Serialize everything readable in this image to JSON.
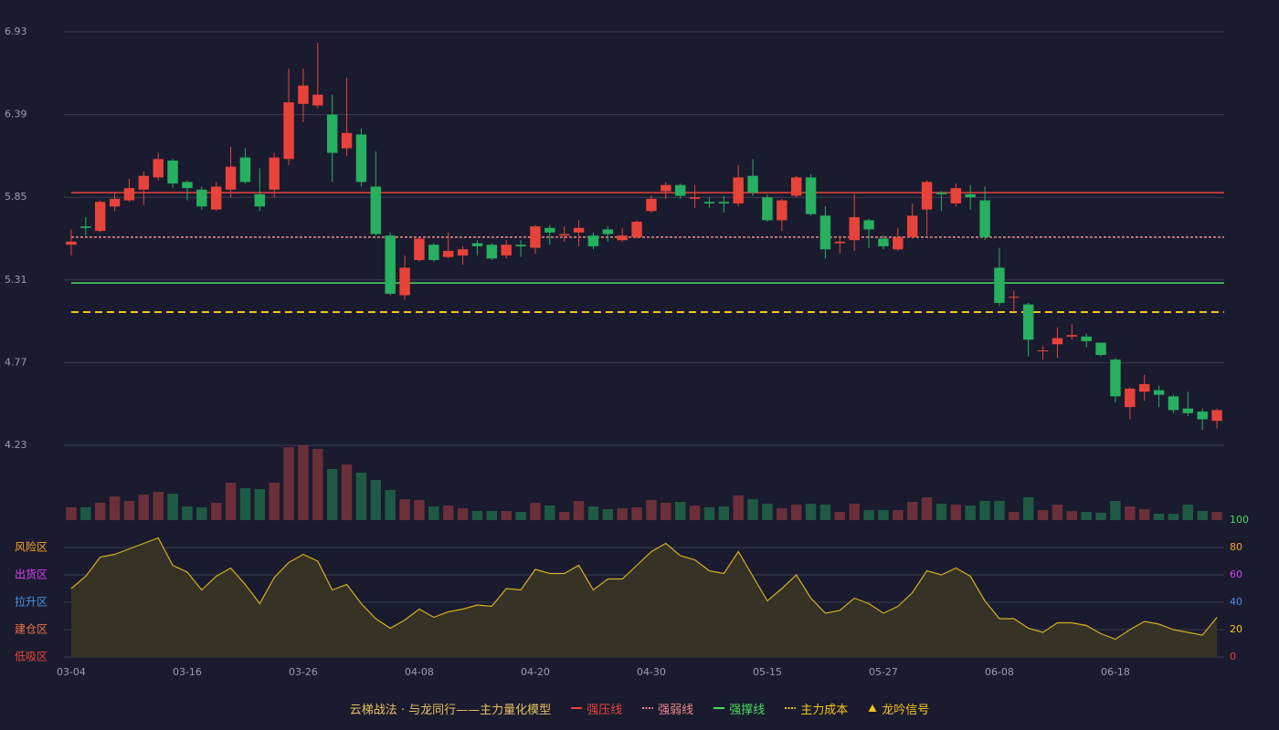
{
  "chart_data": [
    {
      "type": "candlestick",
      "title": "云梯战法 · 与龙同行——主力量化模型",
      "categories": [
        "03-04",
        null,
        null,
        null,
        null,
        null,
        null,
        null,
        "03-16",
        null,
        null,
        null,
        null,
        null,
        null,
        null,
        "03-26",
        null,
        null,
        null,
        null,
        null,
        null,
        null,
        "04-08",
        null,
        null,
        null,
        null,
        null,
        null,
        null,
        "04-20",
        null,
        null,
        null,
        null,
        null,
        null,
        null,
        "04-30",
        null,
        null,
        null,
        null,
        null,
        null,
        null,
        "05-15",
        null,
        null,
        null,
        null,
        null,
        null,
        null,
        "05-27",
        null,
        null,
        null,
        null,
        null,
        null,
        null,
        "06-08",
        null,
        null,
        null,
        null,
        null,
        null,
        null,
        "06-18",
        null,
        null,
        null,
        null,
        null,
        null,
        null
      ],
      "open": [
        5.54,
        5.66,
        5.63,
        5.79,
        5.83,
        5.9,
        5.98,
        6.09,
        5.95,
        5.9,
        5.77,
        5.9,
        6.11,
        5.87,
        5.9,
        6.1,
        6.46,
        6.45,
        6.39,
        6.17,
        6.26,
        5.92,
        5.6,
        5.21,
        5.44,
        5.54,
        5.46,
        5.47,
        5.55,
        5.54,
        5.47,
        5.54,
        5.52,
        5.65,
        5.6,
        5.62,
        5.6,
        5.64,
        5.57,
        5.59,
        5.76,
        5.89,
        5.93,
        5.84,
        5.82,
        5.82,
        5.81,
        5.99,
        5.85,
        5.7,
        5.86,
        5.98,
        5.73,
        5.55,
        5.57,
        5.7,
        5.58,
        5.51,
        5.59,
        5.77,
        5.88,
        5.81,
        5.87,
        5.83,
        5.39,
        5.2,
        5.15,
        4.85,
        4.89,
        4.94,
        4.94,
        4.9,
        4.79,
        4.48,
        4.58,
        4.59,
        4.55,
        4.47,
        4.45,
        4.39
      ],
      "high": [
        5.64,
        5.72,
        5.83,
        5.88,
        5.97,
        6.02,
        6.14,
        6.1,
        5.96,
        5.92,
        5.95,
        6.18,
        6.17,
        6.04,
        6.14,
        6.69,
        6.69,
        6.86,
        6.52,
        6.63,
        6.3,
        6.15,
        5.62,
        5.47,
        5.59,
        5.55,
        5.62,
        5.53,
        5.57,
        5.55,
        5.57,
        5.57,
        5.67,
        5.67,
        5.66,
        5.7,
        5.62,
        5.66,
        5.65,
        5.7,
        5.86,
        5.95,
        5.94,
        5.93,
        5.85,
        5.86,
        6.06,
        6.1,
        5.87,
        5.84,
        5.99,
        6.0,
        5.79,
        5.6,
        5.87,
        5.71,
        5.6,
        5.65,
        5.81,
        5.96,
        5.89,
        5.94,
        5.93,
        5.92,
        5.52,
        5.24,
        5.16,
        4.88,
        5.0,
        5.02,
        4.96,
        4.9,
        4.8,
        4.61,
        4.69,
        4.62,
        4.56,
        4.58,
        4.47,
        4.47
      ],
      "low": [
        5.47,
        5.6,
        5.62,
        5.76,
        5.82,
        5.8,
        5.96,
        5.91,
        5.83,
        5.77,
        5.76,
        5.85,
        5.94,
        5.76,
        5.85,
        6.06,
        6.34,
        6.43,
        5.95,
        6.12,
        5.92,
        5.6,
        5.21,
        5.18,
        5.43,
        5.43,
        5.45,
        5.41,
        5.47,
        5.44,
        5.45,
        5.46,
        5.48,
        5.54,
        5.56,
        5.53,
        5.51,
        5.56,
        5.56,
        5.58,
        5.75,
        5.84,
        5.84,
        5.78,
        5.78,
        5.75,
        5.79,
        5.86,
        5.69,
        5.63,
        5.85,
        5.73,
        5.45,
        5.48,
        5.5,
        5.52,
        5.51,
        5.5,
        5.58,
        5.6,
        5.76,
        5.79,
        5.77,
        5.57,
        5.14,
        5.1,
        4.81,
        4.79,
        4.8,
        4.92,
        4.87,
        4.81,
        4.51,
        4.4,
        4.52,
        4.48,
        4.44,
        4.42,
        4.33,
        4.34
      ],
      "close": [
        5.56,
        5.65,
        5.82,
        5.84,
        5.91,
        5.99,
        6.1,
        5.94,
        5.91,
        5.79,
        5.92,
        6.05,
        5.95,
        5.79,
        6.11,
        6.47,
        6.58,
        6.52,
        6.14,
        6.27,
        5.95,
        5.61,
        5.22,
        5.39,
        5.58,
        5.44,
        5.5,
        5.51,
        5.53,
        5.45,
        5.54,
        5.53,
        5.66,
        5.62,
        5.61,
        5.65,
        5.53,
        5.61,
        5.6,
        5.69,
        5.84,
        5.93,
        5.86,
        5.85,
        5.81,
        5.81,
        5.98,
        5.88,
        5.7,
        5.83,
        5.98,
        5.74,
        5.51,
        5.56,
        5.72,
        5.64,
        5.53,
        5.59,
        5.73,
        5.95,
        5.87,
        5.91,
        5.85,
        5.59,
        5.16,
        5.2,
        4.92,
        4.85,
        4.93,
        4.95,
        4.91,
        4.82,
        4.55,
        4.6,
        4.63,
        4.56,
        4.46,
        4.44,
        4.4,
        4.46
      ],
      "up_color": "#e8433a",
      "down_color": "#26b060",
      "ylim": [
        4.23,
        6.93
      ],
      "yticks": [
        4.23,
        4.77,
        5.31,
        5.85,
        6.39,
        6.93
      ],
      "grid": true,
      "lines": [
        {
          "name": "强压线",
          "value": 5.88,
          "color": "#e8433a",
          "style": "solid"
        },
        {
          "name": "强弱线",
          "value": 5.59,
          "color": "#f08a8a",
          "style": "dashed"
        },
        {
          "name": "强撑线",
          "value": 5.29,
          "color": "#4cd964",
          "style": "solid"
        },
        {
          "name": "主力成本",
          "value": 5.1,
          "color": "#f5c518",
          "style": "dashed"
        }
      ],
      "signal": {
        "name": "龙吟信号",
        "color": "#f5c518"
      }
    },
    {
      "type": "bar",
      "values": [
        14,
        14,
        19,
        26,
        21,
        28,
        31,
        29,
        15,
        14,
        19,
        41,
        35,
        34,
        41,
        80,
        82,
        78,
        56,
        61,
        52,
        44,
        33,
        23,
        22,
        15,
        16,
        13,
        10,
        10,
        10,
        9,
        19,
        16,
        9,
        21,
        15,
        12,
        13,
        14,
        22,
        19,
        20,
        16,
        14,
        15,
        27,
        23,
        18,
        13,
        17,
        18,
        17,
        9,
        18,
        11,
        11,
        11,
        20,
        25,
        18,
        17,
        16,
        21,
        21,
        9,
        25,
        11,
        17,
        10,
        9,
        8,
        21,
        15,
        12,
        7,
        7,
        17,
        10,
        9
      ],
      "up_color": "#6b2f3a",
      "down_color": "#1f5a45"
    },
    {
      "type": "line",
      "values": [
        50,
        59,
        73,
        75,
        79,
        83,
        87,
        67,
        62,
        49,
        59,
        65,
        53,
        39,
        58,
        69,
        75,
        70,
        49,
        53,
        39,
        28,
        21,
        27,
        35,
        29,
        33,
        35,
        38,
        37,
        50,
        49,
        64,
        61,
        61,
        67,
        49,
        57,
        57,
        67,
        77,
        83,
        74,
        71,
        63,
        61,
        77,
        59,
        41,
        50,
        60,
        43,
        32,
        34,
        43,
        39,
        32,
        37,
        47,
        63,
        60,
        65,
        59,
        41,
        28,
        28,
        21,
        18,
        25,
        25,
        23,
        17,
        13,
        20,
        26,
        24,
        20,
        18,
        16,
        29
      ],
      "color": "#d4b020",
      "fill": "#363226",
      "ylim": [
        0,
        100
      ],
      "yticks": [
        0,
        20,
        40,
        60,
        80,
        100
      ],
      "ytick_colors": [
        "#e8433a",
        "#f5c518",
        "#4a90e2",
        "#e040fb",
        "#f5a623",
        "#4cd964"
      ],
      "zones": [
        {
          "label": "风险区",
          "value": 80,
          "color": "#f5a623"
        },
        {
          "label": "出货区",
          "value": 60,
          "color": "#e040fb"
        },
        {
          "label": "拉升区",
          "value": 40,
          "color": "#4a90e2"
        },
        {
          "label": "建仓区",
          "value": 20,
          "color": "#f07050"
        },
        {
          "label": "低吸区",
          "value": 0,
          "color": "#e8433a"
        }
      ]
    }
  ]
}
